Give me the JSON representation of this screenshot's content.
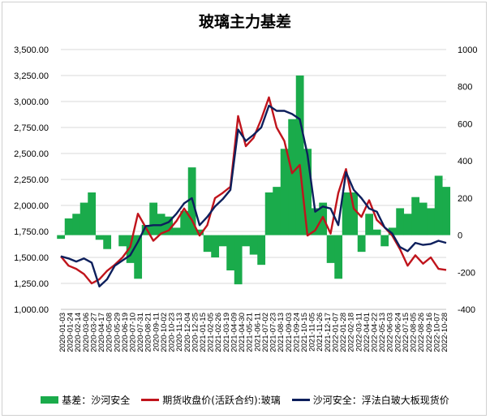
{
  "chart_data": {
    "type": "line",
    "title": "玻璃主力基差",
    "left_axis": {
      "ticks": [
        "1,000.00",
        "1,250.00",
        "1,500.00",
        "1,750.00",
        "2,000.00",
        "2,250.00",
        "2,500.00",
        "2,750.00",
        "3,000.00",
        "3,250.00",
        "3,500.00"
      ],
      "ylim": [
        1000,
        3500
      ]
    },
    "right_axis": {
      "ticks": [
        "-400",
        "-200",
        "0",
        "200",
        "400",
        "600",
        "800",
        "1000"
      ],
      "ylim": [
        -400,
        1000
      ]
    },
    "x_tick_labels": [
      "2020-01-03",
      "2020-01-24",
      "2020-02-14",
      "2020-03-06",
      "2020-03-27",
      "2020-04-17",
      "2020-05-08",
      "2020-05-29",
      "2020-06-19",
      "2020-07-10",
      "2020-07-31",
      "2020-08-21",
      "2020-09-11",
      "2020-10-02",
      "2020-10-23",
      "2020-11-13",
      "2020-12-04",
      "2020-12-25",
      "2021-01-15",
      "2021-02-05",
      "2021-02-26",
      "2021-03-19",
      "2021-04-09",
      "2021-04-30",
      "2021-05-21",
      "2021-06-11",
      "2021-07-02",
      "2021-07-23",
      "2021-08-13",
      "2021-09-03",
      "2021-09-24",
      "2021-10-15",
      "2021-11-05",
      "2021-11-26",
      "2021-12-17",
      "2022-01-07",
      "2022-01-28",
      "2022-02-18",
      "2022-03-11",
      "2022-04-01",
      "2022-04-22",
      "2022-05-13",
      "2022-06-03",
      "2022-06-24",
      "2022-07-15",
      "2022-08-05",
      "2022-08-26",
      "2022-09-16",
      "2022-10-07",
      "2022-10-28"
    ],
    "grid": true,
    "legend_position": "bottom",
    "series": [
      {
        "name": "基差：沙河安全",
        "axis": "right",
        "kind": "area",
        "color": "#1aab4b",
        "values": [
          -20,
          90,
          115,
          175,
          230,
          -25,
          -75,
          0,
          -60,
          -150,
          -235,
          55,
          175,
          115,
          100,
          40,
          130,
          365,
          30,
          -90,
          -120,
          -60,
          -190,
          -265,
          -60,
          -105,
          -160,
          230,
          260,
          465,
          625,
          860,
          465,
          145,
          175,
          -150,
          -235,
          230,
          230,
          -90,
          115,
          30,
          -60,
          40,
          145,
          115,
          205,
          175,
          145,
          320,
          260
        ]
      },
      {
        "name": "期货收盘价(活跃合约):玻璃",
        "axis": "left",
        "kind": "line",
        "color": "#c0141c",
        "values": [
          1510,
          1420,
          1390,
          1340,
          1250,
          1290,
          1370,
          1430,
          1500,
          1600,
          1920,
          1790,
          1660,
          1730,
          1760,
          1850,
          1970,
          1860,
          1710,
          1810,
          2070,
          2120,
          2180,
          2860,
          2570,
          2650,
          2830,
          3040,
          2750,
          2620,
          2310,
          2390,
          1710,
          1760,
          1890,
          1730,
          2120,
          2350,
          1970,
          1890,
          2050,
          1860,
          1790,
          1710,
          1580,
          1420,
          1520,
          1440,
          1500,
          1390,
          1380
        ]
      },
      {
        "name": "沙河安全：浮法白玻大板现货价",
        "axis": "left",
        "kind": "line",
        "color": "#0d1f5c",
        "values": [
          1510,
          1490,
          1460,
          1490,
          1450,
          1220,
          1290,
          1420,
          1470,
          1520,
          1650,
          1800,
          1810,
          1810,
          1840,
          1920,
          2020,
          2070,
          1810,
          1890,
          1990,
          2060,
          2150,
          2730,
          2620,
          2680,
          2750,
          2960,
          2910,
          2910,
          2880,
          2830,
          2490,
          1940,
          1990,
          1970,
          1810,
          2320,
          2150,
          2070,
          1970,
          1940,
          1790,
          1730,
          1600,
          1560,
          1640,
          1620,
          1630,
          1660,
          1640
        ]
      }
    ]
  }
}
